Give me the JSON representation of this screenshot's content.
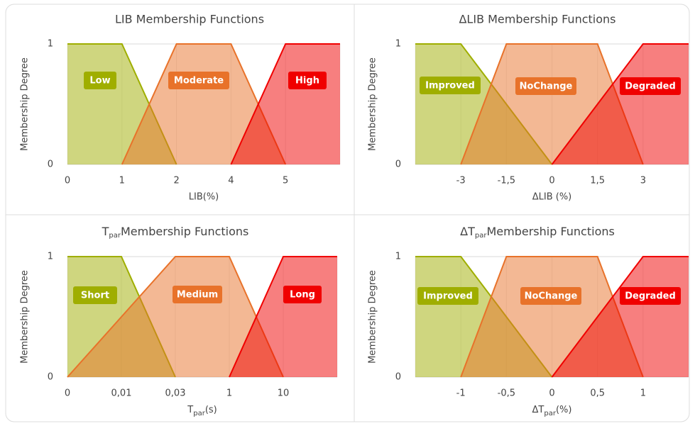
{
  "chart_data": [
    {
      "type": "area",
      "title": "LIB Membership Functions",
      "xlabel": "LIB(%)",
      "ylabel": "Membership Degree",
      "categories": [
        "0",
        "1",
        "2",
        "4",
        "5",
        null
      ],
      "series": [
        {
          "name": "Low",
          "color": "#9fae00",
          "values": [
            1,
            1,
            0,
            null,
            null,
            null
          ]
        },
        {
          "name": "Moderate",
          "color": "#e8722a",
          "values": [
            null,
            0,
            1,
            1,
            0,
            null
          ]
        },
        {
          "name": "High",
          "color": "#f00000",
          "values": [
            null,
            null,
            null,
            0,
            1,
            1
          ]
        }
      ],
      "ylim": [
        0,
        1
      ],
      "yticks": [
        0,
        1
      ],
      "grid": true
    },
    {
      "type": "area",
      "title": "ΔLIB Membership Functions",
      "xlabel": "ΔLIB (%)",
      "ylabel": "Membership Degree",
      "categories": [
        null,
        "-3",
        "-1,5",
        "0",
        "1,5",
        "3",
        null
      ],
      "series": [
        {
          "name": "Improved",
          "color": "#9fae00",
          "values": [
            1,
            1,
            0.5,
            0,
            null,
            null,
            null
          ]
        },
        {
          "name": "NoChange",
          "color": "#e8722a",
          "values": [
            null,
            0,
            1,
            1,
            1,
            0,
            null
          ]
        },
        {
          "name": "Degraded",
          "color": "#f00000",
          "values": [
            null,
            null,
            null,
            0,
            0.5,
            1,
            1
          ]
        }
      ],
      "ylim": [
        0,
        1
      ],
      "yticks": [
        0,
        1
      ],
      "grid": true
    },
    {
      "type": "area",
      "title": [
        "T",
        "par",
        "Membership Functions"
      ],
      "xlabel": [
        "T",
        "par",
        "(s)"
      ],
      "ylabel": "Membership Degree",
      "categories": [
        "0",
        "0,01",
        "0,03",
        "1",
        "10",
        null
      ],
      "series": [
        {
          "name": "Short",
          "color": "#9fae00",
          "values": [
            1,
            1,
            0,
            null,
            null,
            null
          ]
        },
        {
          "name": "Medium",
          "color": "#e8722a",
          "values": [
            0,
            0.5,
            1,
            1,
            0,
            null
          ]
        },
        {
          "name": "Long",
          "color": "#f00000",
          "values": [
            null,
            null,
            null,
            0,
            1,
            1
          ]
        }
      ],
      "ylim": [
        0,
        1
      ],
      "yticks": [
        0,
        1
      ],
      "grid": true
    },
    {
      "type": "area",
      "title": [
        "ΔT",
        "par",
        "Membership Functions"
      ],
      "xlabel": [
        "ΔT",
        "par",
        "(%)"
      ],
      "ylabel": "Membership Degree",
      "categories": [
        null,
        "-1",
        "-0,5",
        "0",
        "0,5",
        "1",
        null
      ],
      "series": [
        {
          "name": "Improved",
          "color": "#9fae00",
          "values": [
            1,
            1,
            0.5,
            0,
            null,
            null,
            null
          ]
        },
        {
          "name": "NoChange",
          "color": "#e8722a",
          "values": [
            null,
            0,
            1,
            1,
            1,
            0,
            null
          ]
        },
        {
          "name": "Degraded",
          "color": "#f00000",
          "values": [
            null,
            null,
            null,
            0,
            0.5,
            1,
            1
          ]
        }
      ],
      "ylim": [
        0,
        1
      ],
      "yticks": [
        0,
        1
      ],
      "grid": true
    }
  ]
}
